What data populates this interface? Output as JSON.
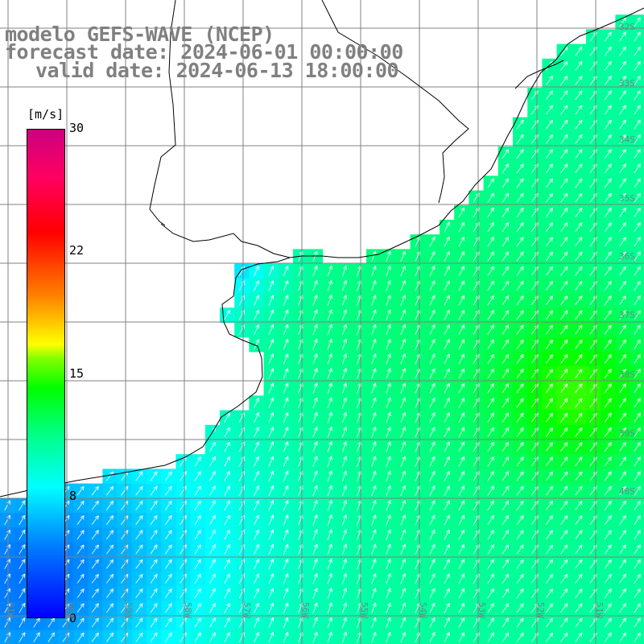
{
  "title": {
    "model": "modelo GEFS-WAVE (NCEP)",
    "forecast": "forecast date: 2024-06-01 00:00:00",
    "valid": "valid date: 2024-06-13 18:00:00"
  },
  "colorbar": {
    "unit": "[m/s]",
    "ticks": [
      "30",
      "22",
      "15",
      "8",
      "0"
    ],
    "range": [
      0,
      30
    ],
    "colors": [
      "#0000ff",
      "#0080ff",
      "#00ffff",
      "#00ff80",
      "#00ff00",
      "#80ff00",
      "#ffff00",
      "#ff8000",
      "#ff0000",
      "#cc0080"
    ]
  },
  "map": {
    "lat_labels": [
      "32S",
      "33S",
      "34S",
      "35S",
      "36S",
      "37S",
      "38S",
      "39S",
      "40S"
    ],
    "lon_labels": [
      "61W",
      "60W",
      "59W",
      "58W",
      "57W",
      "56W",
      "55W",
      "54W",
      "53W",
      "52W",
      "51W"
    ],
    "field": "wind speed with direction arrows",
    "arrow_direction": "toward north-east",
    "max_region": "yellow-green maximum near 37S 52W",
    "land_color": "#ffffff",
    "coast_color": "#000000",
    "grid_color": "#808080"
  }
}
